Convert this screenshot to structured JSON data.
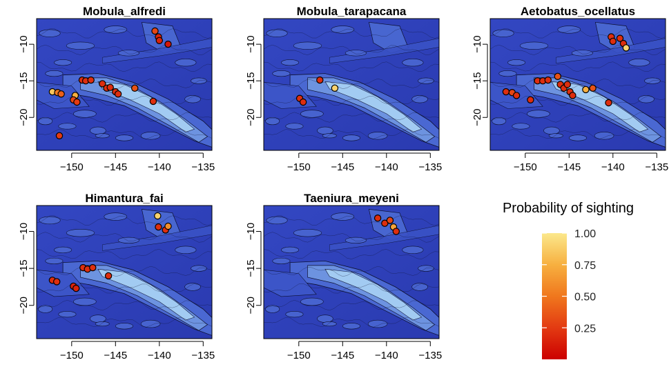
{
  "chart_data": [
    {
      "type": "scatter",
      "title": "Mobula_alfredi",
      "x_ticks": [
        -150,
        -145,
        -140,
        -135
      ],
      "y_ticks": [
        -10,
        -15,
        -20
      ],
      "xlim": [
        -154,
        -134
      ],
      "ylim": [
        -24.5,
        -6.5
      ],
      "points": [
        {
          "x": -140.5,
          "y": -8.2,
          "p": 0.3
        },
        {
          "x": -140.1,
          "y": -9.0,
          "p": 0.15
        },
        {
          "x": -140.0,
          "y": -9.5,
          "p": 0.15
        },
        {
          "x": -139.0,
          "y": -10.0,
          "p": 0.1
        },
        {
          "x": -148.8,
          "y": -14.9,
          "p": 0.2
        },
        {
          "x": -148.4,
          "y": -15.0,
          "p": 0.2
        },
        {
          "x": -147.8,
          "y": -14.9,
          "p": 0.2
        },
        {
          "x": -146.5,
          "y": -15.4,
          "p": 0.2
        },
        {
          "x": -146.0,
          "y": -16.0,
          "p": 0.2
        },
        {
          "x": -145.6,
          "y": -15.9,
          "p": 0.2
        },
        {
          "x": -145.0,
          "y": -16.5,
          "p": 0.2
        },
        {
          "x": -144.7,
          "y": -16.8,
          "p": 0.2
        },
        {
          "x": -142.8,
          "y": -16.0,
          "p": 0.35
        },
        {
          "x": -140.7,
          "y": -17.8,
          "p": 0.2
        },
        {
          "x": -152.2,
          "y": -16.5,
          "p": 0.85
        },
        {
          "x": -151.6,
          "y": -16.6,
          "p": 0.5
        },
        {
          "x": -151.2,
          "y": -16.8,
          "p": 0.4
        },
        {
          "x": -149.6,
          "y": -17.0,
          "p": 0.75
        },
        {
          "x": -149.8,
          "y": -17.6,
          "p": 0.3
        },
        {
          "x": -149.4,
          "y": -17.9,
          "p": 0.25
        },
        {
          "x": -151.4,
          "y": -22.5,
          "p": 0.25
        }
      ]
    },
    {
      "type": "scatter",
      "title": "Mobula_tarapacana",
      "x_ticks": [
        -150,
        -145,
        -140,
        -135
      ],
      "y_ticks": [
        -10,
        -15,
        -20
      ],
      "xlim": [
        -154,
        -134
      ],
      "ylim": [
        -24.5,
        -6.5
      ],
      "points": [
        {
          "x": -147.6,
          "y": -14.9,
          "p": 0.2
        },
        {
          "x": -145.9,
          "y": -16.0,
          "p": 0.9
        },
        {
          "x": -149.9,
          "y": -17.4,
          "p": 0.2
        },
        {
          "x": -149.5,
          "y": -17.9,
          "p": 0.2
        }
      ]
    },
    {
      "type": "scatter",
      "title": "Aetobatus_ocellatus",
      "x_ticks": [
        -150,
        -145,
        -140,
        -135
      ],
      "y_ticks": [
        -10,
        -15,
        -20
      ],
      "xlim": [
        -154,
        -134
      ],
      "ylim": [
        -24.5,
        -6.5
      ],
      "points": [
        {
          "x": -140.2,
          "y": -9.0,
          "p": 0.2
        },
        {
          "x": -140.0,
          "y": -9.6,
          "p": 0.2
        },
        {
          "x": -139.2,
          "y": -9.2,
          "p": 0.2
        },
        {
          "x": -138.8,
          "y": -9.9,
          "p": 0.2
        },
        {
          "x": -138.5,
          "y": -10.5,
          "p": 0.9
        },
        {
          "x": -152.2,
          "y": -16.5,
          "p": 0.2
        },
        {
          "x": -151.5,
          "y": -16.6,
          "p": 0.3
        },
        {
          "x": -151.0,
          "y": -17.0,
          "p": 0.2
        },
        {
          "x": -149.4,
          "y": -17.6,
          "p": 0.2
        },
        {
          "x": -148.6,
          "y": -15.0,
          "p": 0.2
        },
        {
          "x": -148.0,
          "y": -15.0,
          "p": 0.2
        },
        {
          "x": -147.4,
          "y": -14.9,
          "p": 0.2
        },
        {
          "x": -146.3,
          "y": -14.4,
          "p": 0.35
        },
        {
          "x": -146.0,
          "y": -15.5,
          "p": 0.2
        },
        {
          "x": -145.6,
          "y": -16.0,
          "p": 0.2
        },
        {
          "x": -145.2,
          "y": -15.5,
          "p": 0.2
        },
        {
          "x": -144.9,
          "y": -16.5,
          "p": 0.2
        },
        {
          "x": -144.6,
          "y": -17.0,
          "p": 0.2
        },
        {
          "x": -143.1,
          "y": -16.2,
          "p": 0.75
        },
        {
          "x": -142.3,
          "y": -16.0,
          "p": 0.35
        },
        {
          "x": -140.5,
          "y": -18.0,
          "p": 0.2
        }
      ]
    },
    {
      "type": "scatter",
      "title": "Himantura_fai",
      "x_ticks": [
        -150,
        -145,
        -140,
        -135
      ],
      "y_ticks": [
        -10,
        -15,
        -20
      ],
      "xlim": [
        -154,
        -134
      ],
      "ylim": [
        -24.5,
        -6.5
      ],
      "points": [
        {
          "x": -140.2,
          "y": -7.9,
          "p": 0.9
        },
        {
          "x": -140.1,
          "y": -9.4,
          "p": 0.2
        },
        {
          "x": -139.3,
          "y": -9.8,
          "p": 0.2
        },
        {
          "x": -139.0,
          "y": -9.3,
          "p": 0.6
        },
        {
          "x": -148.7,
          "y": -14.9,
          "p": 0.2
        },
        {
          "x": -148.2,
          "y": -15.1,
          "p": 0.2
        },
        {
          "x": -147.6,
          "y": -14.9,
          "p": 0.2
        },
        {
          "x": -145.8,
          "y": -16.0,
          "p": 0.2
        },
        {
          "x": -152.2,
          "y": -16.6,
          "p": 0.2
        },
        {
          "x": -151.7,
          "y": -16.8,
          "p": 0.2
        },
        {
          "x": -149.8,
          "y": -17.4,
          "p": 0.15
        },
        {
          "x": -149.5,
          "y": -17.7,
          "p": 0.15
        }
      ]
    },
    {
      "type": "scatter",
      "title": "Taeniura_meyeni",
      "x_ticks": [
        -150,
        -145,
        -140,
        -135
      ],
      "y_ticks": [
        -10,
        -15,
        -20
      ],
      "xlim": [
        -154,
        -134
      ],
      "ylim": [
        -24.5,
        -6.5
      ],
      "points": [
        {
          "x": -141.0,
          "y": -8.2,
          "p": 0.2
        },
        {
          "x": -140.2,
          "y": -8.9,
          "p": 0.2
        },
        {
          "x": -139.6,
          "y": -8.5,
          "p": 0.3
        },
        {
          "x": -139.2,
          "y": -9.4,
          "p": 0.7
        },
        {
          "x": -138.9,
          "y": -10.0,
          "p": 0.2
        }
      ]
    }
  ],
  "legend": {
    "title": "Probability of sighting",
    "ticks": [
      "1.00",
      "0.75",
      "0.50",
      "0.25"
    ],
    "tick_values": [
      1.0,
      0.75,
      0.5,
      0.25
    ],
    "colors": [
      "#cc0000",
      "#e33a12",
      "#f0771d",
      "#f7b040",
      "#fbe88c"
    ]
  },
  "colors": {
    "ocean_deep": "#2c3db8",
    "ocean_mid": "#4866d0",
    "ocean_shallow": "#a8d2f4",
    "contour": "#0d1030"
  }
}
